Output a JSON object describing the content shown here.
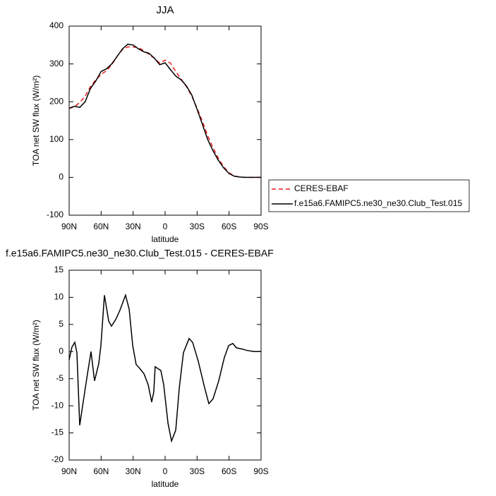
{
  "chart_data": [
    {
      "type": "line",
      "title": "JJA",
      "x_label": "latitude",
      "y_label": "TOA net SW flux (W/m²)",
      "x": [
        90,
        85,
        80,
        75,
        70,
        65,
        60,
        55,
        50,
        45,
        40,
        35,
        30,
        25,
        20,
        15,
        10,
        5,
        0,
        -5,
        -10,
        -15,
        -20,
        -25,
        -30,
        -35,
        -40,
        -45,
        -50,
        -55,
        -60,
        -65,
        -70,
        -75,
        -80,
        -85,
        -90
      ],
      "series": [
        {
          "name": "CERES-EBAF",
          "color": "#e8191b",
          "line_style": "dashed",
          "values": [
            182,
            187,
            198,
            215,
            240,
            258,
            272,
            282,
            298,
            320,
            338,
            345,
            345,
            343,
            335,
            325,
            315,
            302,
            310,
            302,
            280,
            260,
            240,
            215,
            183,
            148,
            110,
            78,
            50,
            28,
            12,
            4,
            1,
            0,
            0,
            0,
            0
          ]
        },
        {
          "name": "f.e15a6.FAMIPC5.ne30_ne30.Club_Test.015",
          "color": "#000000",
          "line_style": "solid",
          "values": [
            183,
            188,
            185,
            200,
            235,
            255,
            280,
            287,
            300,
            320,
            340,
            352,
            350,
            340,
            332,
            328,
            315,
            298,
            303,
            285,
            268,
            258,
            242,
            218,
            180,
            140,
            100,
            70,
            45,
            25,
            10,
            3,
            1,
            0,
            0,
            0,
            0
          ]
        }
      ],
      "xlim": [
        90,
        -90
      ],
      "xticks": [
        {
          "value": 90,
          "label": "90N"
        },
        {
          "value": 60,
          "label": "60N"
        },
        {
          "value": 30,
          "label": "30N"
        },
        0,
        {
          "value": -30,
          "label": "30S"
        },
        {
          "value": -60,
          "label": "60S"
        },
        {
          "value": -90,
          "label": "90S"
        }
      ],
      "ylim": [
        -100,
        400
      ],
      "yticks": [
        -100,
        0,
        100,
        200,
        300,
        400
      ],
      "legend": "outside right"
    },
    {
      "type": "line",
      "title": "f.e15a6.FAMIPC5.ne30_ne30.Club_Test.015 - CERES-EBAF",
      "x_label": "latitude",
      "y_label": "TOA net SW flux (W/m²)",
      "x": [
        90,
        87.4,
        84.7,
        82.7,
        80.1,
        76.8,
        72.8,
        69.5,
        66.2,
        62.2,
        60.2,
        56.9,
        52.9,
        50.3,
        46.3,
        42.4,
        37.1,
        33.7,
        30.4,
        27.1,
        23.8,
        19.8,
        15.9,
        12.6,
        10.6,
        9.3,
        4.0,
        1.3,
        -2.7,
        -6.0,
        -10.0,
        -13.3,
        -17.2,
        -22.5,
        -25.8,
        -31.1,
        -37.1,
        -41.0,
        -45.0,
        -50.3,
        -55.6,
        -59.6,
        -63.5,
        -66.8,
        -73.5,
        -76.8,
        -83.4,
        -90
      ],
      "values": [
        -1.5,
        0.8,
        1.7,
        -0.2,
        -13.6,
        -9.3,
        -4.1,
        0.0,
        -5.4,
        -2.2,
        1.1,
        10.4,
        5.6,
        4.7,
        5.9,
        7.6,
        10.4,
        7.8,
        1.1,
        -2.4,
        -3.1,
        -4.1,
        -6.1,
        -9.3,
        -7.4,
        -2.8,
        -3.5,
        -6.1,
        -13.2,
        -16.5,
        -14.5,
        -6.7,
        -0.2,
        2.4,
        1.7,
        -1.8,
        -6.7,
        -9.6,
        -8.7,
        -5.4,
        -1.1,
        1.1,
        1.5,
        0.7,
        0.4,
        0.2,
        0.0,
        0
      ],
      "color": "#000000",
      "xlim": [
        90,
        -90
      ],
      "xticks": [
        {
          "value": 90,
          "label": "90N"
        },
        {
          "value": 60,
          "label": "60N"
        },
        {
          "value": 30,
          "label": "30N"
        },
        0,
        {
          "value": -30,
          "label": "30S"
        },
        {
          "value": -60,
          "label": "60S"
        },
        {
          "value": -90,
          "label": "90S"
        }
      ],
      "ylim": [
        -20,
        15
      ],
      "yticks": [
        -20,
        -15,
        -10,
        -5,
        0,
        5,
        10,
        15
      ]
    }
  ]
}
